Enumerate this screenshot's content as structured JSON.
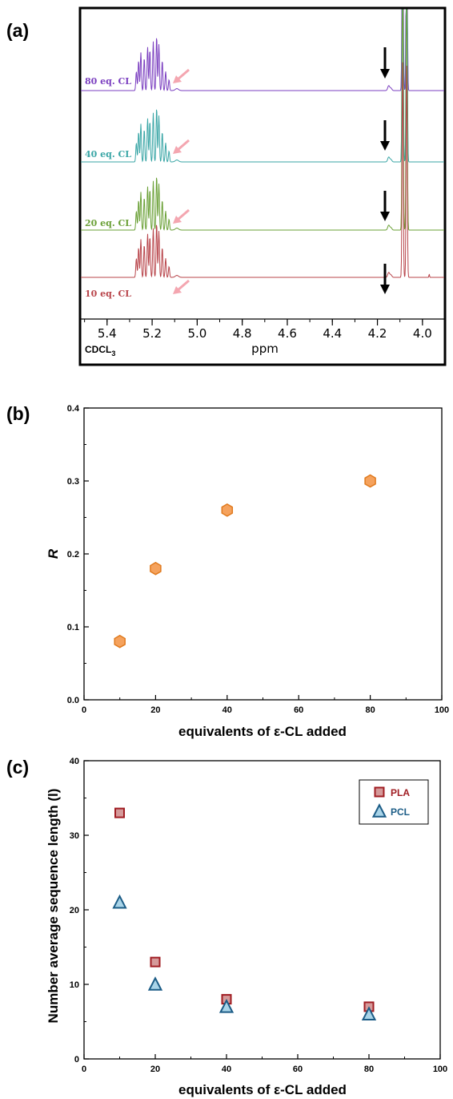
{
  "panels": {
    "a": {
      "label": "(a)",
      "x_title": "ppm",
      "solvent": "CDCL",
      "solvent_sub": "3",
      "x_ticks": [
        "5.4",
        "5.2",
        "5.0",
        "4.8",
        "4.6",
        "4.4",
        "4.2",
        "4.0"
      ],
      "traces": [
        {
          "label": "80 eq. CL",
          "color": "#7b3fc0"
        },
        {
          "label": "40 eq. CL",
          "color": "#3aa6a6"
        },
        {
          "label": "20 eq. CL",
          "color": "#6aa036"
        },
        {
          "label": "10 eq. CL",
          "color": "#b8444a"
        }
      ]
    },
    "b": {
      "label": "(b)"
    },
    "c": {
      "label": "(c)"
    }
  },
  "colors": {
    "hex_fill": "#f5a25d",
    "hex_stroke": "#e07a1e",
    "pla_fill": "#d59a9a",
    "pla_stroke": "#a01c22",
    "pcl_fill": "#a9d4e8",
    "pcl_stroke": "#1b5c86",
    "pla_text": "#a01c22",
    "pcl_text": "#1b5c86"
  },
  "chart_data": [
    {
      "type": "scatter",
      "panel": "b",
      "xlabel": "equivalents of ε-CL added",
      "ylabel": "R",
      "xlim": [
        0,
        100
      ],
      "ylim": [
        0.0,
        0.4
      ],
      "x_ticks": [
        "0",
        "20",
        "40",
        "60",
        "80",
        "100"
      ],
      "y_ticks": [
        "0.0",
        "0.1",
        "0.2",
        "0.3",
        "0.4"
      ],
      "grid": false,
      "series": [
        {
          "marker": "hexagon",
          "x": [
            10,
            20,
            40,
            80
          ],
          "y": [
            0.08,
            0.18,
            0.26,
            0.3
          ]
        }
      ]
    },
    {
      "type": "scatter",
      "panel": "c",
      "xlabel": "equivalents of ε-CL added",
      "ylabel": "Number average sequence length (l)",
      "xlim": [
        0,
        100
      ],
      "ylim": [
        0,
        40
      ],
      "x_ticks": [
        "0",
        "20",
        "40",
        "60",
        "80",
        "100"
      ],
      "y_ticks": [
        "0",
        "10",
        "20",
        "30",
        "40"
      ],
      "grid": false,
      "legend_position": "top-right",
      "series": [
        {
          "name": "PLA",
          "marker": "square",
          "x": [
            10,
            20,
            40,
            80
          ],
          "y": [
            33,
            13,
            8,
            7
          ]
        },
        {
          "name": "PCL",
          "marker": "triangle",
          "x": [
            10,
            20,
            40,
            80
          ],
          "y": [
            21,
            10,
            7,
            6
          ]
        }
      ]
    }
  ]
}
